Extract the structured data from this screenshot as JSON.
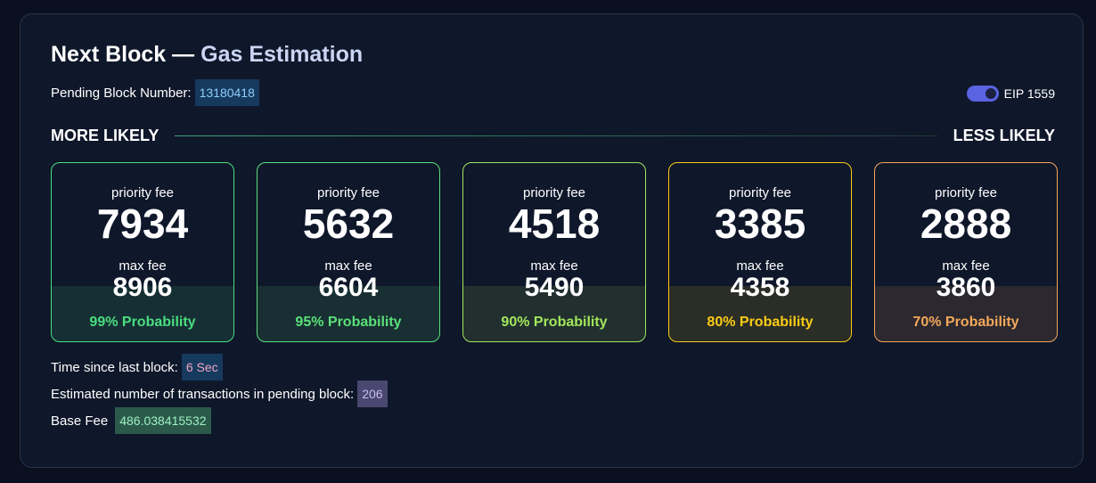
{
  "header": {
    "title_main": "Next Block —",
    "title_accent": "Gas Estimation",
    "pending_label": "Pending Block Number:",
    "pending_value": "13180418"
  },
  "eip": {
    "label": "EIP 1559",
    "enabled": true,
    "toggle_color": "#5b63e3"
  },
  "likelihood": {
    "left": "MORE LIKELY",
    "right": "LESS LIKELY"
  },
  "cards": [
    {
      "priority_label": "priority fee",
      "priority_value": "7934",
      "max_label": "max fee",
      "max_value": "8906",
      "probability": "99% Probability",
      "color": "#4ade80"
    },
    {
      "priority_label": "priority fee",
      "priority_value": "5632",
      "max_label": "max fee",
      "max_value": "6604",
      "probability": "95% Probability",
      "color": "#5be07a"
    },
    {
      "priority_label": "priority fee",
      "priority_value": "4518",
      "max_label": "max fee",
      "max_value": "5490",
      "probability": "90% Probability",
      "color": "#a3e65b"
    },
    {
      "priority_label": "priority fee",
      "priority_value": "3385",
      "max_label": "max fee",
      "max_value": "4358",
      "probability": "80% Probability",
      "color": "#facc15"
    },
    {
      "priority_label": "priority fee",
      "priority_value": "2888",
      "max_label": "max fee",
      "max_value": "3860",
      "probability": "70% Probability",
      "color": "#f4a85a"
    }
  ],
  "stats": {
    "time_label": "Time since last block:",
    "time_value": "6 Sec",
    "tx_label": "Estimated number of transactions in pending block:",
    "tx_value": "206",
    "base_fee_label": "Base Fee",
    "base_fee_value": "486.038415532"
  }
}
